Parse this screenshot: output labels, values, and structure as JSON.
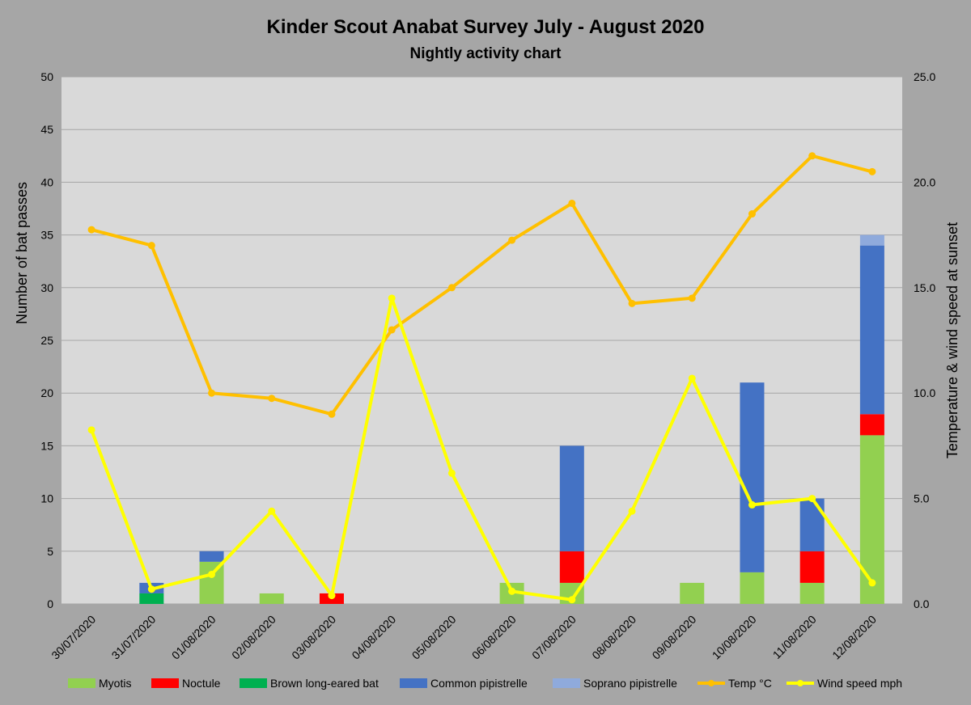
{
  "chart_data": {
    "type": "bar",
    "subtype": "stacked-bar-with-lines",
    "title": "Kinder Scout Anabat Survey July - August 2020",
    "subtitle": "Nightly activity chart",
    "ylabel": "Number of bat passes",
    "y2label": "Temperature & wind speed at sunset",
    "ylim": [
      0,
      50
    ],
    "y2lim": [
      0.0,
      25.0
    ],
    "yticks": [
      "0",
      "5",
      "10",
      "15",
      "20",
      "25",
      "30",
      "35",
      "40",
      "45",
      "50"
    ],
    "y2ticks": [
      "0.0",
      "5.0",
      "10.0",
      "15.0",
      "20.0",
      "25.0"
    ],
    "grid": true,
    "legend_position": "bottom",
    "categories": [
      "30/07/2020",
      "31/07/2020",
      "01/08/2020",
      "02/08/2020",
      "03/08/2020",
      "04/08/2020",
      "05/08/2020",
      "06/08/2020",
      "07/08/2020",
      "08/08/2020",
      "09/08/2020",
      "10/08/2020",
      "11/08/2020",
      "12/08/2020"
    ],
    "bar_series": [
      {
        "name": "Myotis",
        "color": "#92d050",
        "values": [
          0,
          0,
          4,
          1,
          0,
          0,
          0,
          2,
          2,
          0,
          2,
          3,
          2,
          16
        ]
      },
      {
        "name": "Noctule",
        "color": "#ff0000",
        "values": [
          0,
          0,
          0,
          0,
          1,
          0,
          0,
          0,
          3,
          0,
          0,
          0,
          3,
          2
        ]
      },
      {
        "name": "Brown long-eared bat",
        "color": "#00b050",
        "values": [
          0,
          1,
          0,
          0,
          0,
          0,
          0,
          0,
          0,
          0,
          0,
          0,
          0,
          0
        ]
      },
      {
        "name": "Common pipistrelle",
        "color": "#4472c4",
        "values": [
          0,
          1,
          1,
          0,
          0,
          0,
          0,
          0,
          10,
          0,
          0,
          18,
          5,
          16
        ]
      },
      {
        "name": "Soprano pipistrelle",
        "color": "#8faadc",
        "values": [
          0,
          0,
          0,
          0,
          0,
          0,
          0,
          0,
          0,
          0,
          0,
          0,
          0,
          1
        ]
      }
    ],
    "line_series": [
      {
        "name": "Temp °C",
        "color": "#ffc000",
        "axis": "right",
        "values": [
          17.75,
          17.0,
          10.0,
          9.75,
          9.0,
          13.0,
          15.0,
          17.25,
          19.0,
          14.25,
          14.5,
          18.5,
          21.25,
          20.5
        ]
      },
      {
        "name": "Wind speed mph",
        "color": "#ffff00",
        "axis": "right",
        "values": [
          8.25,
          0.7,
          1.4,
          4.4,
          0.4,
          14.5,
          6.2,
          0.6,
          0.2,
          4.4,
          10.7,
          4.7,
          5.0,
          1.0
        ]
      }
    ]
  }
}
